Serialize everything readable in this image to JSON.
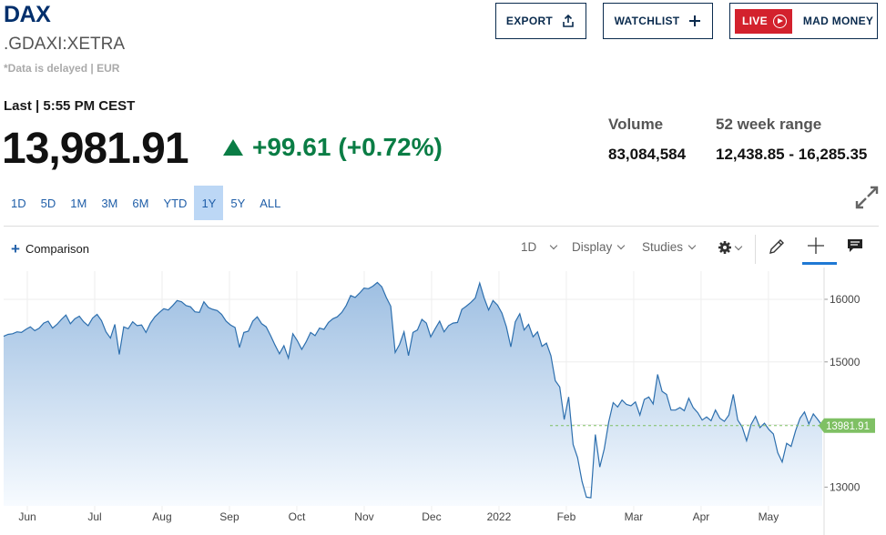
{
  "header": {
    "title": "DAX",
    "ticker": ".GDAXI:XETRA",
    "delayed_note": "*Data is delayed | EUR",
    "buttons": {
      "export": "EXPORT",
      "watchlist": "WATCHLIST",
      "live_badge": "LIVE",
      "live_show": "MAD MONEY"
    }
  },
  "quote": {
    "last_label": "Last | 5:55 PM CEST",
    "price": "13,981.91",
    "change": "+99.61",
    "change_pct": "(+0.72%)",
    "volume_label": "Volume",
    "volume": "83,084,584",
    "range_label": "52 week range",
    "range": "12,438.85 - 16,285.35"
  },
  "range_tabs": [
    {
      "label": "1D",
      "active": false
    },
    {
      "label": "5D",
      "active": false
    },
    {
      "label": "1M",
      "active": false
    },
    {
      "label": "3M",
      "active": false
    },
    {
      "label": "6M",
      "active": false
    },
    {
      "label": "YTD",
      "active": false
    },
    {
      "label": "1Y",
      "active": true
    },
    {
      "label": "5Y",
      "active": false
    },
    {
      "label": "ALL",
      "active": false
    }
  ],
  "toolbar": {
    "comparison": "Comparison",
    "interval": "1D",
    "display": "Display",
    "studies": "Studies"
  },
  "colors": {
    "line": "#2d6fae",
    "area_top": "#9ebfe2",
    "area_bottom": "#f7fbff",
    "price_tag": "#7fc064",
    "up": "#0a7d45"
  },
  "chart_data": {
    "type": "area",
    "x_tick_labels": [
      "Jun",
      "Jul",
      "Aug",
      "Sep",
      "Oct",
      "Nov",
      "Dec",
      "2022",
      "Feb",
      "Mar",
      "Apr",
      "May"
    ],
    "y_ticks": [
      13000,
      14000,
      15000,
      16000
    ],
    "ylim": [
      12700,
      16450
    ],
    "last_value": 13981.91,
    "last_value_label": "13981.91",
    "series": [
      {
        "values": [
          15410,
          15440,
          15450,
          15480,
          15470,
          15520,
          15560,
          15500,
          15540,
          15620,
          15650,
          15540,
          15600,
          15680,
          15750,
          15610,
          15690,
          15730,
          15640,
          15580,
          15700,
          15760,
          15660,
          15480,
          15380,
          15600,
          15120,
          15560,
          15530,
          15640,
          15580,
          15590,
          15470,
          15620,
          15720,
          15790,
          15850,
          15830,
          15900,
          15980,
          15960,
          15900,
          15880,
          15800,
          15790,
          15960,
          15870,
          15840,
          15820,
          15760,
          15650,
          15590,
          15550,
          15230,
          15470,
          15490,
          15650,
          15720,
          15610,
          15560,
          15420,
          15270,
          15130,
          15260,
          15060,
          15450,
          15340,
          15200,
          15320,
          15470,
          15420,
          15540,
          15520,
          15630,
          15690,
          15720,
          15790,
          15900,
          16060,
          16030,
          16100,
          16180,
          16170,
          16210,
          16270,
          16200,
          16030,
          15890,
          15150,
          15280,
          15480,
          15100,
          15470,
          15510,
          15680,
          15620,
          15400,
          15530,
          15650,
          15480,
          15580,
          15620,
          15630,
          15840,
          15890,
          15950,
          16020,
          16260,
          16020,
          15830,
          15980,
          15910,
          15780,
          15560,
          15240,
          15640,
          15770,
          15510,
          15600,
          15400,
          15480,
          15250,
          15300,
          15100,
          14700,
          14600,
          14080,
          14440,
          13680,
          13470,
          13090,
          12840,
          12830,
          13840,
          13320,
          13610,
          14040,
          14350,
          14280,
          14390,
          14320,
          14300,
          14360,
          14150,
          14400,
          14440,
          14330,
          14800,
          14530,
          14480,
          14230,
          14230,
          14270,
          14220,
          14420,
          14270,
          14190,
          14070,
          14120,
          14060,
          14230,
          14100,
          14050,
          14150,
          14480,
          14070,
          13960,
          13740,
          14000,
          14130,
          13950,
          14020,
          13920,
          13850,
          13550,
          13400,
          13700,
          13650,
          13900,
          14100,
          14200,
          14010,
          14170,
          14080,
          13980
        ]
      }
    ]
  }
}
